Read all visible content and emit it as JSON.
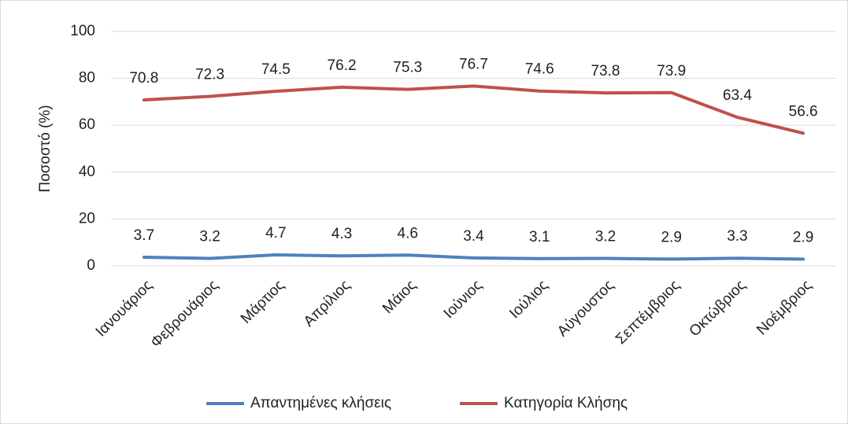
{
  "chart_data": {
    "type": "line",
    "y_label": "Ποσοστό (%)",
    "categories": [
      "Ιανουάριος",
      "Φεβρουάριος",
      "Μάρτιος",
      "Απρίλιος",
      "Μάιος",
      "Ιούνιος",
      "Ιούλιος",
      "Αύγουστος",
      "Σεπτέμβριος",
      "Οκτώβριος",
      "Νοέμβριος"
    ],
    "series": [
      {
        "name": "Απαντημένες κλήσεις",
        "color": "#4f81bd",
        "values": [
          3.7,
          3.2,
          4.7,
          4.3,
          4.6,
          3.4,
          3.1,
          3.2,
          2.9,
          3.3,
          2.9
        ]
      },
      {
        "name": "Κατηγορία Κλήσης",
        "color": "#c0504d",
        "values": [
          70.8,
          72.3,
          74.5,
          76.2,
          75.3,
          76.7,
          74.6,
          73.8,
          73.9,
          63.4,
          56.6
        ]
      }
    ],
    "ylim": [
      0,
      100
    ],
    "yticks": [
      0,
      20,
      40,
      60,
      80,
      100
    ],
    "grid": true,
    "legend": "bottom"
  }
}
